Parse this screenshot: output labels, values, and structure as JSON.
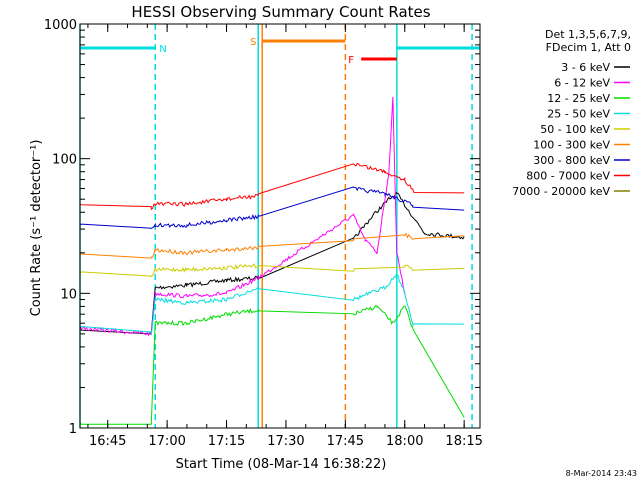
{
  "chart_data": {
    "type": "line",
    "title": "HESSI Observing Summary Count Rates",
    "xlabel": "Start Time (08-Mar-14 16:38:22)",
    "ylabel": "Count Rate (s⁻¹ detector⁻¹)",
    "y_scale": "log",
    "ylim": [
      1,
      1000
    ],
    "xlim": [
      "16:38",
      "18:19"
    ],
    "x_ticks": [
      "16:45",
      "17:00",
      "17:15",
      "17:30",
      "17:45",
      "18:00",
      "18:15"
    ],
    "y_ticks": [
      "1",
      "10",
      "100",
      "1000"
    ],
    "grid": false,
    "legend_position": "right",
    "legend_header": [
      "Det 1,3,5,6,7,9,",
      "FDecim 1, Att 0"
    ],
    "footer": "8-Mar-2014 23:43",
    "series": [
      {
        "name": "3 - 6 keV",
        "color": "#000000",
        "points": [
          [
            "16:38",
            5.5
          ],
          [
            "16:56",
            5
          ],
          [
            "16:57",
            11
          ],
          [
            "17:05",
            11.5
          ],
          [
            "17:15",
            12.5
          ],
          [
            "17:23",
            13
          ],
          [
            "17:47",
            25
          ],
          [
            "17:52",
            38
          ],
          [
            "17:56",
            50
          ],
          [
            "17:58",
            55
          ],
          [
            "18:05",
            28
          ],
          [
            "18:15",
            26
          ]
        ]
      },
      {
        "name": "6 - 12 keV",
        "color": "#ff00ff",
        "points": [
          [
            "16:38",
            5.5
          ],
          [
            "16:56",
            5
          ],
          [
            "16:57",
            10
          ],
          [
            "17:05",
            9.5
          ],
          [
            "17:15",
            10
          ],
          [
            "17:23",
            13
          ],
          [
            "17:47",
            38
          ],
          [
            "17:50",
            25
          ],
          [
            "17:53",
            20
          ],
          [
            "17:56",
            80
          ],
          [
            "17:57",
            280
          ],
          [
            "17:58",
            20
          ],
          [
            "18:00",
            10
          ]
        ]
      },
      {
        "name": "12 - 25 keV",
        "color": "#00dd00",
        "points": [
          [
            "16:38",
            1.1
          ],
          [
            "16:56",
            1.1
          ],
          [
            "16:57",
            6
          ],
          [
            "17:05",
            6
          ],
          [
            "17:15",
            7
          ],
          [
            "17:23",
            7.5
          ],
          [
            "17:47",
            7
          ],
          [
            "17:53",
            8
          ],
          [
            "17:57",
            6
          ],
          [
            "18:00",
            8
          ],
          [
            "18:02",
            5.5
          ],
          [
            "18:15",
            1.2
          ]
        ]
      },
      {
        "name": "25 - 50 keV",
        "color": "#00dddd",
        "points": [
          [
            "16:38",
            5.5
          ],
          [
            "16:56",
            5
          ],
          [
            "16:57",
            9
          ],
          [
            "17:05",
            8.5
          ],
          [
            "17:15",
            9
          ],
          [
            "17:23",
            11
          ],
          [
            "17:47",
            9
          ],
          [
            "17:55",
            11
          ],
          [
            "17:58",
            14
          ],
          [
            "18:00",
            10
          ],
          [
            "18:02",
            6
          ],
          [
            "18:15",
            6
          ]
        ]
      },
      {
        "name": "50 - 100 keV",
        "color": "#cccc00",
        "points": [
          [
            "16:38",
            14
          ],
          [
            "16:56",
            13
          ],
          [
            "16:57",
            15
          ],
          [
            "17:05",
            15
          ],
          [
            "17:15",
            15.5
          ],
          [
            "17:23",
            16
          ],
          [
            "17:47",
            15
          ],
          [
            "18:00",
            16
          ],
          [
            "18:02",
            15
          ],
          [
            "18:15",
            15.5
          ]
        ]
      },
      {
        "name": "100 - 300 keV",
        "color": "#ff8000",
        "points": [
          [
            "16:38",
            20
          ],
          [
            "16:56",
            18
          ],
          [
            "16:57",
            21
          ],
          [
            "17:05",
            20
          ],
          [
            "17:15",
            21
          ],
          [
            "17:23",
            22
          ],
          [
            "17:47",
            25
          ],
          [
            "18:00",
            27
          ],
          [
            "18:02",
            26
          ],
          [
            "18:15",
            26
          ]
        ]
      },
      {
        "name": "300 - 800 keV",
        "color": "#0000cc",
        "points": [
          [
            "16:38",
            32
          ],
          [
            "16:56",
            30
          ],
          [
            "16:57",
            32
          ],
          [
            "17:05",
            32
          ],
          [
            "17:15",
            35
          ],
          [
            "17:23",
            37
          ],
          [
            "17:47",
            60
          ],
          [
            "17:55",
            55
          ],
          [
            "18:00",
            48
          ],
          [
            "18:02",
            45
          ],
          [
            "18:15",
            42
          ]
        ]
      },
      {
        "name": "800 - 7000 keV",
        "color": "#ff0000",
        "points": [
          [
            "16:38",
            46
          ],
          [
            "16:56",
            43
          ],
          [
            "16:57",
            46
          ],
          [
            "17:05",
            46
          ],
          [
            "17:15",
            50
          ],
          [
            "17:23",
            53
          ],
          [
            "17:47",
            92
          ],
          [
            "17:55",
            80
          ],
          [
            "18:00",
            70
          ],
          [
            "18:02",
            58
          ],
          [
            "18:15",
            55
          ]
        ]
      },
      {
        "name": "7000 - 20000 keV",
        "color": "#808000",
        "points": []
      }
    ],
    "segments": [
      {
        "flag": "N",
        "color": "#00dddd",
        "start": "16:38",
        "end": "16:57"
      },
      {
        "flag": "S",
        "color": "#ff8000",
        "start": "17:24",
        "end": "17:45"
      },
      {
        "flag": "F",
        "color": "#ff0000",
        "start": "17:49",
        "end": "17:58"
      },
      {
        "flag": "",
        "color": "#00dddd",
        "start": "17:58",
        "end": "18:19"
      }
    ],
    "vertical_markers": [
      {
        "time": "16:38",
        "color": "#00dddd",
        "style": "solid"
      },
      {
        "time": "16:57",
        "color": "#00dddd",
        "style": "dashed"
      },
      {
        "time": "17:23",
        "color": "#00dddd",
        "style": "solid"
      },
      {
        "time": "17:24",
        "color": "#ff8000",
        "style": "solid"
      },
      {
        "time": "17:45",
        "color": "#ff8000",
        "style": "dashed"
      },
      {
        "time": "17:58",
        "color": "#00dddd",
        "style": "solid"
      },
      {
        "time": "18:17",
        "color": "#00dddd",
        "style": "dashed"
      }
    ]
  }
}
